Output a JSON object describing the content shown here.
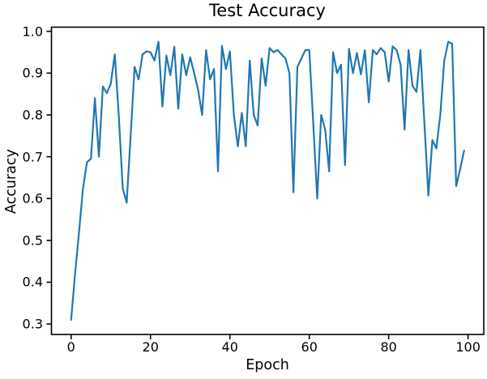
{
  "figure": {
    "background": "#ffffff",
    "text_color": "#000000",
    "spine_color": "#000000"
  },
  "chart_data": {
    "type": "line",
    "title": "Test Accuracy",
    "xlabel": "Epoch",
    "ylabel": "Accuracy",
    "grid": false,
    "legend": null,
    "line_color": "#1f77b4",
    "line_width": 2.2,
    "xlim": [
      -4.95,
      103.95
    ],
    "ylim": [
      0.275,
      1.01
    ],
    "xticks": [
      0,
      20,
      40,
      60,
      80,
      100
    ],
    "yticks": [
      0.3,
      0.4,
      0.5,
      0.6,
      0.7,
      0.8,
      0.9,
      1.0
    ],
    "x": [
      0,
      1,
      2,
      3,
      4,
      5,
      6,
      7,
      8,
      9,
      10,
      11,
      12,
      13,
      14,
      15,
      16,
      17,
      18,
      19,
      20,
      21,
      22,
      23,
      24,
      25,
      26,
      27,
      28,
      29,
      30,
      31,
      32,
      33,
      34,
      35,
      36,
      37,
      38,
      39,
      40,
      41,
      42,
      43,
      44,
      45,
      46,
      47,
      48,
      49,
      50,
      51,
      52,
      53,
      54,
      55,
      56,
      57,
      58,
      59,
      60,
      61,
      62,
      63,
      64,
      65,
      66,
      67,
      68,
      69,
      70,
      71,
      72,
      73,
      74,
      75,
      76,
      77,
      78,
      79,
      80,
      81,
      82,
      83,
      84,
      85,
      86,
      87,
      88,
      89,
      90,
      91,
      92,
      93,
      94,
      95,
      96,
      97,
      98,
      99
    ],
    "series": [
      {
        "name": "test accuracy",
        "values": [
          0.31,
          0.42,
          0.52,
          0.625,
          0.687,
          0.695,
          0.84,
          0.7,
          0.868,
          0.852,
          0.875,
          0.945,
          0.8,
          0.625,
          0.59,
          0.75,
          0.915,
          0.885,
          0.945,
          0.952,
          0.95,
          0.93,
          0.975,
          0.82,
          0.942,
          0.895,
          0.963,
          0.815,
          0.945,
          0.895,
          0.938,
          0.9,
          0.86,
          0.8,
          0.955,
          0.885,
          0.91,
          0.665,
          0.965,
          0.91,
          0.952,
          0.8,
          0.725,
          0.805,
          0.725,
          0.93,
          0.8,
          0.775,
          0.935,
          0.87,
          0.96,
          0.95,
          0.955,
          0.945,
          0.935,
          0.9,
          0.615,
          0.915,
          0.935,
          0.955,
          0.955,
          0.78,
          0.6,
          0.8,
          0.765,
          0.665,
          0.95,
          0.9,
          0.92,
          0.68,
          0.958,
          0.9,
          0.948,
          0.897,
          0.955,
          0.83,
          0.955,
          0.945,
          0.96,
          0.95,
          0.88,
          0.964,
          0.955,
          0.92,
          0.765,
          0.955,
          0.87,
          0.855,
          0.955,
          0.78,
          0.607,
          0.74,
          0.72,
          0.8,
          0.93,
          0.975,
          0.97,
          0.63,
          0.67,
          0.715
        ]
      }
    ]
  }
}
